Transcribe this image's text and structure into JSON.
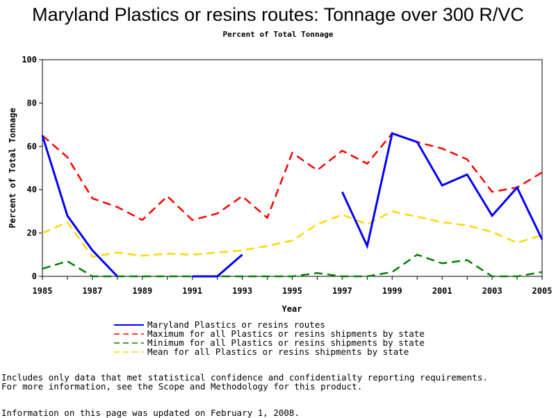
{
  "title": "Maryland Plastics or resins routes: Tonnage over 300 R/VC",
  "subtitle": "Percent of Total Tonnage",
  "chart_data": {
    "type": "line",
    "xlabel": "Year",
    "ylabel": "Percent of Total Tonnage",
    "xlim": [
      1985,
      2005
    ],
    "ylim": [
      0,
      100
    ],
    "x_ticks": [
      "1985",
      "1987",
      "1989",
      "1991",
      "1993",
      "1995",
      "1997",
      "1999",
      "2001",
      "2003",
      "2005"
    ],
    "y_ticks": [
      "0",
      "20",
      "40",
      "60",
      "80",
      "100"
    ],
    "grid": false,
    "legend_position": "bottom",
    "x": [
      1985,
      1986,
      1987,
      1988,
      1989,
      1990,
      1991,
      1992,
      1993,
      1994,
      1995,
      1996,
      1997,
      1998,
      1999,
      2000,
      2001,
      2002,
      2003,
      2004,
      2005
    ],
    "series": [
      {
        "name": "Maryland Plastics or resins routes",
        "color": "#0000ff",
        "dash": "solid",
        "values": [
          65,
          28,
          12,
          0,
          null,
          null,
          0,
          0,
          10,
          null,
          null,
          null,
          39,
          14,
          66,
          62,
          42,
          47,
          28,
          41,
          17
        ]
      },
      {
        "name": "Maximum for all Plastics or resins shipments by state",
        "color": "#ff0000",
        "dash": "dashed",
        "values": [
          65,
          55,
          36,
          32,
          26,
          37,
          26,
          29,
          37,
          27,
          57,
          49,
          58,
          52,
          66,
          62,
          59,
          54,
          39,
          41,
          48
        ]
      },
      {
        "name": "Minimum for all Plastics or resins shipments by state",
        "color": "#008000",
        "dash": "dashed",
        "values": [
          3.5,
          7,
          0,
          0,
          0,
          0,
          0,
          0,
          0,
          0,
          0,
          1.5,
          0,
          0,
          2,
          10,
          6,
          7.5,
          0,
          0,
          2
        ]
      },
      {
        "name": "Mean for all Plastics or resins shipments by state",
        "color": "#ffd700",
        "dash": "dashed",
        "values": [
          20,
          25,
          9,
          11,
          9.5,
          10.5,
          10,
          11,
          12,
          14,
          16.5,
          24,
          28.5,
          24,
          30,
          27.5,
          25,
          23.5,
          20.5,
          15.5,
          19
        ]
      }
    ]
  },
  "footnotes": {
    "line1": "Includes only data that met statistical confidence and confidentialty reporting requirements.",
    "line2": "For more information, see the Scope and Methodology for this product.",
    "updated": "Information on this page was updated on February 1, 2008."
  }
}
